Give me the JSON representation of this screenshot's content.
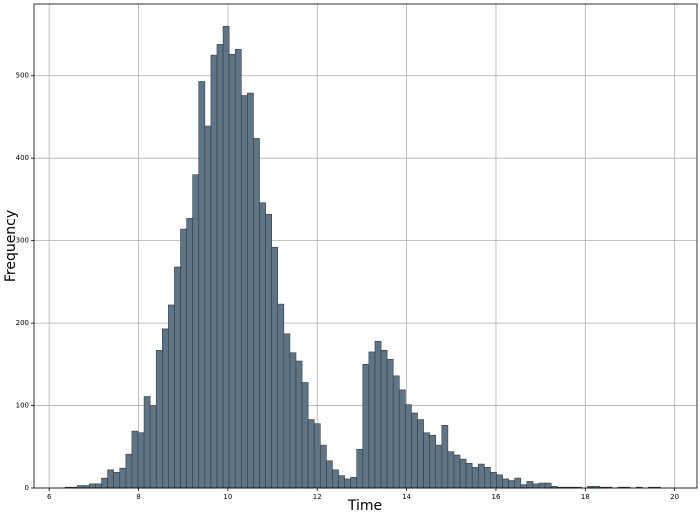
{
  "chart_data": {
    "type": "histogram",
    "x_label": "Time",
    "y_label": "Frequency",
    "bins": [
      6.22,
      6.356,
      6.492,
      6.628,
      6.764,
      6.9,
      7.036,
      7.172,
      7.308,
      7.444,
      7.58,
      7.716,
      7.852,
      7.988,
      8.124,
      8.26,
      8.396,
      8.532,
      8.668,
      8.804,
      8.94,
      9.076,
      9.212,
      9.348,
      9.484,
      9.62,
      9.756,
      9.892,
      10.028,
      10.164,
      10.3,
      10.436,
      10.572,
      10.708,
      10.844,
      10.98,
      11.116,
      11.252,
      11.388,
      11.524,
      11.66,
      11.796,
      11.932,
      12.068,
      12.204,
      12.34,
      12.476,
      12.612,
      12.748,
      12.884,
      13.02,
      13.156,
      13.292,
      13.428,
      13.564,
      13.7,
      13.836,
      13.972,
      14.108,
      14.244,
      14.38,
      14.516,
      14.652,
      14.788,
      14.924,
      15.06,
      15.196,
      15.332,
      15.468,
      15.604,
      15.74,
      15.876,
      16.012,
      16.148,
      16.284,
      16.42,
      16.556,
      16.692,
      16.828,
      16.964,
      17.1,
      17.236,
      17.372,
      17.508,
      17.644,
      17.78,
      17.916,
      18.052,
      18.188,
      18.324,
      18.46,
      18.596,
      18.732,
      18.868,
      19.004,
      19.14,
      19.276,
      19.412,
      19.548,
      19.684,
      19.82
    ],
    "values": [
      0,
      1,
      1,
      3,
      3,
      5,
      5,
      12,
      22,
      19,
      24,
      41,
      69,
      67,
      111,
      100,
      167,
      193,
      222,
      268,
      314,
      327,
      380,
      493,
      439,
      525,
      538,
      560,
      526,
      532,
      476,
      479,
      424,
      346,
      332,
      292,
      223,
      187,
      164,
      154,
      128,
      83,
      78,
      52,
      33,
      22,
      15,
      11,
      13,
      47,
      150,
      165,
      178,
      167,
      156,
      136,
      119,
      101,
      91,
      83,
      67,
      64,
      52,
      76,
      44,
      40,
      35,
      30,
      25,
      29,
      25,
      19,
      16,
      11,
      9,
      12,
      4,
      8,
      5,
      6,
      6,
      2,
      1,
      1,
      1,
      1,
      0,
      2,
      2,
      1,
      1,
      0,
      1,
      1,
      0,
      1,
      0,
      1,
      1,
      0
    ],
    "color": "#5f7585",
    "edge_color": "#2f3b45",
    "xlim": [
      5.66,
      20.5
    ],
    "ylim": [
      0,
      587
    ],
    "xticks": [
      6,
      8,
      10,
      12,
      14,
      16,
      18,
      20
    ],
    "yticks": [
      0,
      100,
      200,
      300,
      400,
      500
    ],
    "grid": true
  }
}
